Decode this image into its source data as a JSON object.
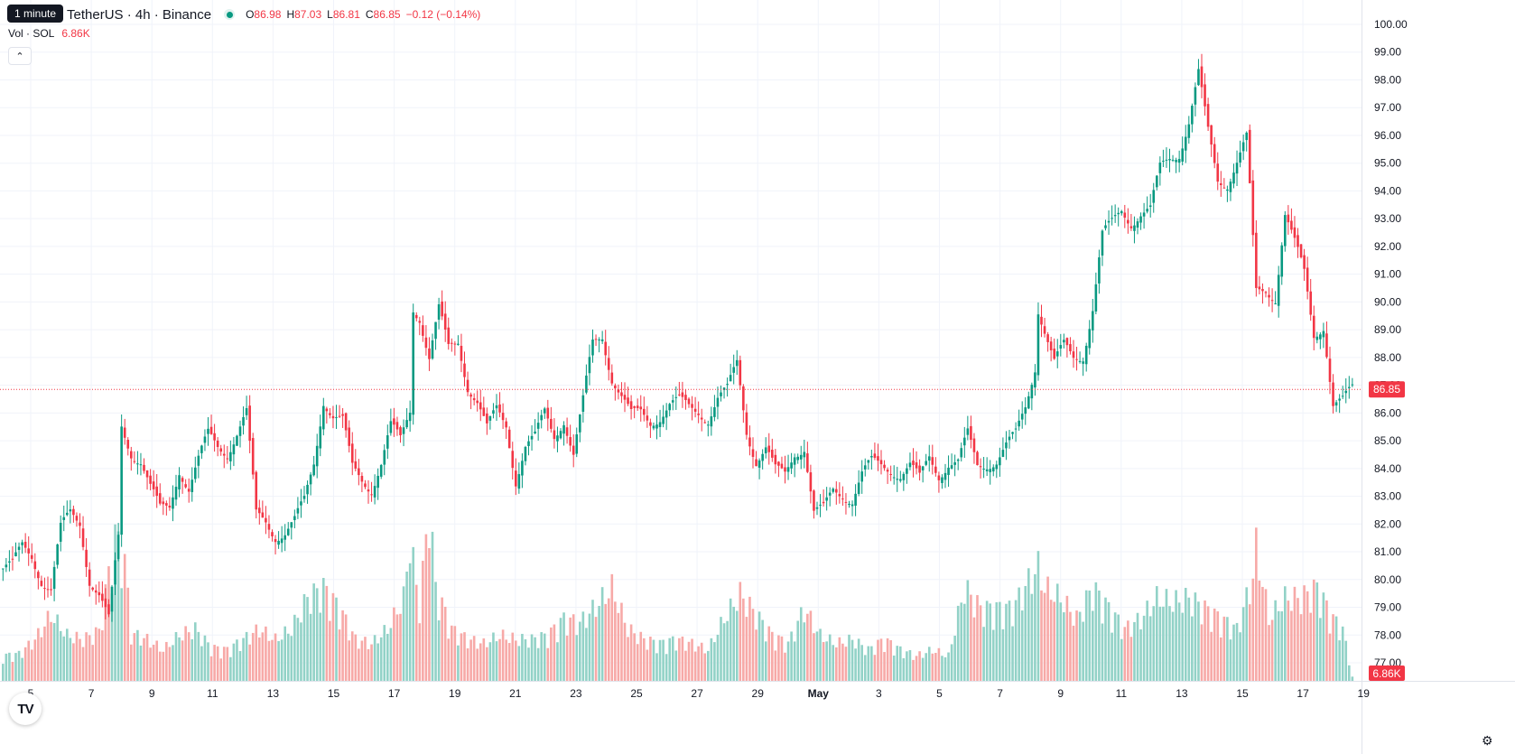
{
  "header": {
    "timeframe_badge": "1 minute",
    "symbol_title": "TetherUS · 4h · Binance",
    "ohlc": {
      "o_label": "O",
      "o_value": "86.98",
      "h_label": "H",
      "h_value": "87.03",
      "l_label": "L",
      "l_value": "86.81",
      "c_label": "C",
      "c_value": "86.85",
      "change": "−0.12 (−0.14%)"
    },
    "volume_label": "Vol · SOL",
    "volume_value": "6.86K"
  },
  "colors": {
    "up": "#089981",
    "down": "#f23645",
    "up_volume": "#92d2c7",
    "down_volume": "#f7a9a7",
    "grid": "#f0f3fa",
    "text": "#131722"
  },
  "icons": {
    "collapse": "chevron-up-icon",
    "logo": "tradingview-logo-icon",
    "settings": "gear-icon"
  },
  "chart_data": {
    "type": "candlestick",
    "interval": "4h",
    "price_axis": {
      "min": 77.0,
      "max": 100.0,
      "ticks": [
        "100.00",
        "99.00",
        "98.00",
        "97.00",
        "96.00",
        "95.00",
        "94.00",
        "93.00",
        "92.00",
        "91.00",
        "90.00",
        "89.00",
        "88.00",
        "87.00",
        "86.00",
        "85.00",
        "84.00",
        "83.00",
        "82.00",
        "81.00",
        "80.00",
        "79.00",
        "78.00",
        "77.00"
      ]
    },
    "time_axis": {
      "ticks": [
        "5",
        "7",
        "9",
        "11",
        "13",
        "15",
        "17",
        "19",
        "21",
        "23",
        "25",
        "27",
        "29",
        "May",
        "3",
        "5",
        "7",
        "9",
        "11",
        "13",
        "15",
        "17",
        "19"
      ]
    },
    "last_price_label": "86.85",
    "last_volume_label": "6.86K",
    "last_price": 86.85,
    "close_path": [
      [
        0,
        80.4
      ],
      [
        3,
        80.5
      ],
      [
        6,
        81.2
      ],
      [
        9,
        80.9
      ],
      [
        12,
        80.0
      ],
      [
        15,
        79.6
      ],
      [
        18,
        81.8
      ],
      [
        21,
        82.4
      ],
      [
        24,
        82.1
      ],
      [
        27,
        80.0
      ],
      [
        30,
        79.4
      ],
      [
        33,
        78.5
      ],
      [
        36,
        81.5
      ],
      [
        37,
        85.5
      ],
      [
        40,
        84.6
      ],
      [
        43,
        84.3
      ],
      [
        46,
        83.3
      ],
      [
        49,
        82.5
      ],
      [
        52,
        82.6
      ],
      [
        55,
        84.0
      ],
      [
        58,
        83.3
      ],
      [
        61,
        84.3
      ],
      [
        64,
        85.2
      ],
      [
        67,
        84.8
      ],
      [
        70,
        84.6
      ],
      [
        73,
        85.3
      ],
      [
        76,
        86.0
      ],
      [
        79,
        82.3
      ],
      [
        82,
        82.1
      ],
      [
        85,
        81.6
      ],
      [
        88,
        81.7
      ],
      [
        91,
        82.1
      ],
      [
        94,
        82.8
      ],
      [
        97,
        84.2
      ],
      [
        100,
        86.5
      ],
      [
        103,
        85.9
      ],
      [
        106,
        85.7
      ],
      [
        109,
        84.0
      ],
      [
        112,
        83.6
      ],
      [
        115,
        83.3
      ],
      [
        118,
        84.2
      ],
      [
        121,
        85.5
      ],
      [
        124,
        85.0
      ],
      [
        127,
        86.1
      ],
      [
        128,
        89.8
      ],
      [
        130,
        89.5
      ],
      [
        133,
        88.0
      ],
      [
        136,
        89.7
      ],
      [
        139,
        88.3
      ],
      [
        142,
        88.6
      ],
      [
        145,
        87.0
      ],
      [
        148,
        86.4
      ],
      [
        151,
        85.4
      ],
      [
        154,
        86.1
      ],
      [
        157,
        85.6
      ],
      [
        160,
        83.6
      ],
      [
        163,
        84.8
      ],
      [
        166,
        85.1
      ],
      [
        169,
        86.0
      ],
      [
        172,
        85.2
      ],
      [
        175,
        85.8
      ],
      [
        178,
        84.5
      ],
      [
        181,
        86.4
      ],
      [
        184,
        88.5
      ],
      [
        187,
        88.8
      ],
      [
        190,
        87.3
      ],
      [
        193,
        86.6
      ],
      [
        196,
        85.9
      ],
      [
        199,
        86.0
      ],
      [
        202,
        85.7
      ],
      [
        205,
        85.9
      ],
      [
        208,
        86.3
      ],
      [
        211,
        86.4
      ],
      [
        214,
        86.2
      ],
      [
        217,
        86.1
      ],
      [
        220,
        85.8
      ],
      [
        223,
        86.5
      ],
      [
        226,
        86.8
      ],
      [
        229,
        87.8
      ],
      [
        232,
        85.4
      ],
      [
        235,
        84.3
      ],
      [
        238,
        84.7
      ],
      [
        241,
        83.9
      ],
      [
        244,
        83.8
      ],
      [
        247,
        84.6
      ],
      [
        250,
        84.8
      ],
      [
        253,
        82.4
      ],
      [
        256,
        82.5
      ],
      [
        259,
        83.2
      ],
      [
        262,
        83.1
      ],
      [
        265,
        82.9
      ],
      [
        268,
        83.8
      ],
      [
        271,
        84.2
      ],
      [
        274,
        84.1
      ],
      [
        277,
        84.0
      ],
      [
        280,
        83.8
      ],
      [
        283,
        84.1
      ],
      [
        286,
        83.6
      ],
      [
        289,
        84.4
      ],
      [
        292,
        83.8
      ],
      [
        295,
        84.2
      ],
      [
        298,
        84.2
      ],
      [
        301,
        85.2
      ],
      [
        304,
        84.1
      ],
      [
        307,
        84.2
      ],
      [
        310,
        84.3
      ],
      [
        313,
        84.8
      ],
      [
        316,
        85.2
      ],
      [
        319,
        86.2
      ],
      [
        322,
        87.7
      ],
      [
        323,
        89.8
      ],
      [
        325,
        89.0
      ],
      [
        328,
        87.8
      ],
      [
        331,
        88.4
      ],
      [
        334,
        88.0
      ],
      [
        337,
        88.1
      ],
      [
        340,
        89.8
      ],
      [
        343,
        92.4
      ],
      [
        346,
        92.8
      ],
      [
        349,
        93.3
      ],
      [
        352,
        92.9
      ],
      [
        355,
        93.2
      ],
      [
        358,
        93.3
      ],
      [
        361,
        94.8
      ],
      [
        364,
        95.2
      ],
      [
        367,
        95.4
      ],
      [
        370,
        96.5
      ],
      [
        373,
        98.2
      ],
      [
        376,
        96.1
      ],
      [
        379,
        94.4
      ],
      [
        382,
        94.3
      ],
      [
        385,
        95.1
      ],
      [
        388,
        95.9
      ],
      [
        391,
        90.3
      ],
      [
        394,
        90.4
      ],
      [
        397,
        90.2
      ],
      [
        400,
        93.2
      ],
      [
        403,
        92.1
      ],
      [
        406,
        91.0
      ],
      [
        409,
        88.8
      ],
      [
        412,
        89.2
      ],
      [
        415,
        86.3
      ],
      [
        418,
        86.4
      ],
      [
        421,
        86.85
      ]
    ],
    "volume_path": [
      [
        0,
        0.12
      ],
      [
        5,
        0.13
      ],
      [
        10,
        0.2
      ],
      [
        15,
        0.32
      ],
      [
        20,
        0.22
      ],
      [
        25,
        0.2
      ],
      [
        30,
        0.24
      ],
      [
        35,
        0.7
      ],
      [
        38,
        0.58
      ],
      [
        40,
        0.23
      ],
      [
        45,
        0.2
      ],
      [
        50,
        0.15
      ],
      [
        55,
        0.22
      ],
      [
        60,
        0.25
      ],
      [
        65,
        0.16
      ],
      [
        70,
        0.15
      ],
      [
        75,
        0.2
      ],
      [
        80,
        0.25
      ],
      [
        85,
        0.2
      ],
      [
        90,
        0.25
      ],
      [
        95,
        0.4
      ],
      [
        100,
        0.45
      ],
      [
        105,
        0.35
      ],
      [
        110,
        0.2
      ],
      [
        115,
        0.18
      ],
      [
        120,
        0.25
      ],
      [
        125,
        0.4
      ],
      [
        127,
        0.68
      ],
      [
        130,
        0.35
      ],
      [
        133,
        0.85
      ],
      [
        135,
        0.45
      ],
      [
        140,
        0.25
      ],
      [
        145,
        0.2
      ],
      [
        150,
        0.18
      ],
      [
        155,
        0.22
      ],
      [
        160,
        0.2
      ],
      [
        165,
        0.2
      ],
      [
        170,
        0.22
      ],
      [
        175,
        0.3
      ],
      [
        180,
        0.28
      ],
      [
        185,
        0.36
      ],
      [
        190,
        0.45
      ],
      [
        195,
        0.25
      ],
      [
        200,
        0.2
      ],
      [
        205,
        0.18
      ],
      [
        210,
        0.2
      ],
      [
        215,
        0.18
      ],
      [
        220,
        0.15
      ],
      [
        225,
        0.3
      ],
      [
        230,
        0.42
      ],
      [
        235,
        0.32
      ],
      [
        240,
        0.22
      ],
      [
        245,
        0.18
      ],
      [
        250,
        0.35
      ],
      [
        255,
        0.22
      ],
      [
        260,
        0.18
      ],
      [
        265,
        0.2
      ],
      [
        270,
        0.15
      ],
      [
        275,
        0.2
      ],
      [
        280,
        0.15
      ],
      [
        285,
        0.12
      ],
      [
        290,
        0.15
      ],
      [
        295,
        0.12
      ],
      [
        300,
        0.45
      ],
      [
        305,
        0.35
      ],
      [
        310,
        0.35
      ],
      [
        315,
        0.35
      ],
      [
        320,
        0.48
      ],
      [
        323,
        0.55
      ],
      [
        325,
        0.45
      ],
      [
        330,
        0.4
      ],
      [
        335,
        0.3
      ],
      [
        340,
        0.45
      ],
      [
        345,
        0.35
      ],
      [
        350,
        0.25
      ],
      [
        355,
        0.3
      ],
      [
        360,
        0.4
      ],
      [
        365,
        0.38
      ],
      [
        370,
        0.4
      ],
      [
        375,
        0.35
      ],
      [
        380,
        0.3
      ],
      [
        385,
        0.25
      ],
      [
        390,
        0.5
      ],
      [
        391,
        0.65
      ],
      [
        395,
        0.3
      ],
      [
        400,
        0.4
      ],
      [
        405,
        0.4
      ],
      [
        410,
        0.45
      ],
      [
        415,
        0.3
      ],
      [
        418,
        0.25
      ],
      [
        421,
        0.02
      ]
    ]
  }
}
